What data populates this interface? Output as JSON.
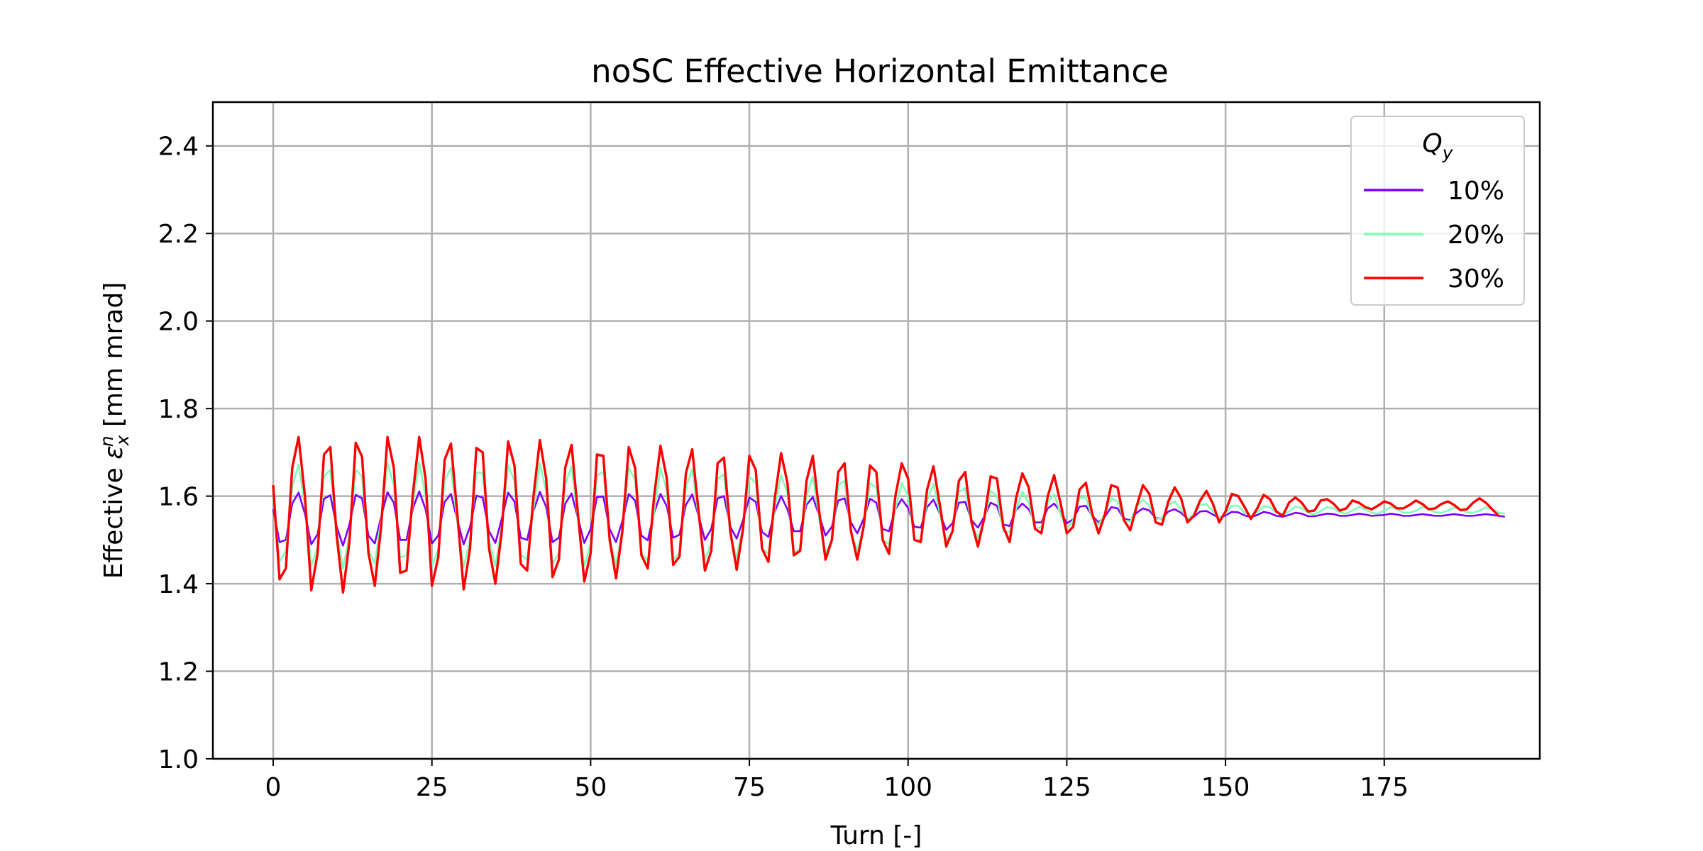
{
  "chart_data": {
    "type": "line",
    "title": "noSC Effective Horizontal Emittance",
    "xlabel": "Turn [-]",
    "ylabel_prefix": "Effective ",
    "ylabel_symbol": "ε",
    "ylabel_sub": "x",
    "ylabel_sup": "n",
    "ylabel_suffix": " [mm mrad]",
    "xlim": [
      -9.5,
      199.5
    ],
    "ylim": [
      1.0,
      2.5
    ],
    "xticks": [
      0,
      25,
      50,
      75,
      100,
      125,
      150,
      175
    ],
    "yticks": [
      1.0,
      1.2,
      1.4,
      1.6,
      1.8,
      2.0,
      2.2,
      2.4
    ],
    "grid": true,
    "legend": {
      "title_symbol": "Q",
      "title_sub": "y",
      "placement": "top-right"
    },
    "series": [
      {
        "name": "10%",
        "color": "#7f00ff",
        "x_start": 0,
        "x_step": 1,
        "values": [
          1.57,
          1.495,
          1.5,
          1.583,
          1.608,
          1.56,
          1.49,
          1.513,
          1.594,
          1.602,
          1.53,
          1.487,
          1.535,
          1.603,
          1.595,
          1.51,
          1.492,
          1.553,
          1.609,
          1.585,
          1.5,
          1.5,
          1.572,
          1.611,
          1.57,
          1.492,
          1.51,
          1.587,
          1.605,
          1.545,
          1.49,
          1.53,
          1.601,
          1.597,
          1.52,
          1.493,
          1.548,
          1.608,
          1.588,
          1.505,
          1.5,
          1.566,
          1.61,
          1.575,
          1.495,
          1.505,
          1.583,
          1.606,
          1.55,
          1.493,
          1.525,
          1.598,
          1.599,
          1.525,
          1.495,
          1.543,
          1.605,
          1.59,
          1.51,
          1.499,
          1.562,
          1.605,
          1.577,
          1.505,
          1.512,
          1.58,
          1.604,
          1.555,
          1.5,
          1.525,
          1.595,
          1.6,
          1.53,
          1.503,
          1.545,
          1.597,
          1.587,
          1.518,
          1.507,
          1.565,
          1.6,
          1.57,
          1.52,
          1.52,
          1.58,
          1.598,
          1.555,
          1.51,
          1.53,
          1.59,
          1.595,
          1.54,
          1.515,
          1.548,
          1.594,
          1.585,
          1.525,
          1.52,
          1.57,
          1.593,
          1.573,
          1.53,
          1.528,
          1.575,
          1.592,
          1.56,
          1.523,
          1.538,
          1.585,
          1.587,
          1.545,
          1.528,
          1.553,
          1.585,
          1.578,
          1.535,
          1.532,
          1.568,
          1.583,
          1.57,
          1.54,
          1.54,
          1.572,
          1.583,
          1.565,
          1.538,
          1.547,
          1.576,
          1.578,
          1.555,
          1.54,
          1.553,
          1.575,
          1.572,
          1.548,
          1.545,
          1.562,
          1.572,
          1.567,
          1.55,
          1.549,
          1.565,
          1.57,
          1.562,
          1.548,
          1.553,
          1.565,
          1.566,
          1.558,
          1.55,
          1.556,
          1.564,
          1.563,
          1.556,
          1.552,
          1.557,
          1.564,
          1.561,
          1.555,
          1.553,
          1.557,
          1.562,
          1.56,
          1.554,
          1.554,
          1.557,
          1.56,
          1.559,
          1.555,
          1.555,
          1.557,
          1.56,
          1.558,
          1.555,
          1.556,
          1.557,
          1.56,
          1.558,
          1.555,
          1.555,
          1.557,
          1.559,
          1.557,
          1.555,
          1.555,
          1.557,
          1.559,
          1.557,
          1.555,
          1.555,
          1.557,
          1.559,
          1.557,
          1.555,
          1.553
        ]
      },
      {
        "name": "20%",
        "color": "#80ffb4",
        "x_start": 0,
        "x_step": 1,
        "values": [
          1.6,
          1.45,
          1.475,
          1.622,
          1.672,
          1.58,
          1.44,
          1.485,
          1.645,
          1.66,
          1.52,
          1.435,
          1.51,
          1.66,
          1.645,
          1.48,
          1.445,
          1.548,
          1.675,
          1.625,
          1.46,
          1.465,
          1.583,
          1.678,
          1.6,
          1.44,
          1.478,
          1.635,
          1.665,
          1.54,
          1.438,
          1.5,
          1.655,
          1.652,
          1.5,
          1.44,
          1.532,
          1.67,
          1.635,
          1.465,
          1.455,
          1.57,
          1.675,
          1.61,
          1.445,
          1.47,
          1.627,
          1.668,
          1.55,
          1.44,
          1.492,
          1.648,
          1.655,
          1.505,
          1.442,
          1.525,
          1.665,
          1.638,
          1.47,
          1.452,
          1.565,
          1.665,
          1.612,
          1.455,
          1.47,
          1.62,
          1.662,
          1.553,
          1.455,
          1.492,
          1.64,
          1.65,
          1.51,
          1.46,
          1.53,
          1.645,
          1.63,
          1.48,
          1.468,
          1.572,
          1.648,
          1.607,
          1.47,
          1.48,
          1.6,
          1.645,
          1.55,
          1.47,
          1.5,
          1.625,
          1.635,
          1.52,
          1.475,
          1.53,
          1.63,
          1.62,
          1.5,
          1.49,
          1.57,
          1.63,
          1.6,
          1.5,
          1.5,
          1.59,
          1.628,
          1.56,
          1.498,
          1.52,
          1.61,
          1.618,
          1.535,
          1.505,
          1.545,
          1.612,
          1.6,
          1.52,
          1.518,
          1.57,
          1.61,
          1.585,
          1.525,
          1.53,
          1.585,
          1.605,
          1.56,
          1.525,
          1.545,
          1.595,
          1.598,
          1.55,
          1.535,
          1.56,
          1.595,
          1.588,
          1.545,
          1.542,
          1.575,
          1.592,
          1.578,
          1.548,
          1.55,
          1.58,
          1.588,
          1.57,
          1.548,
          1.557,
          1.58,
          1.582,
          1.565,
          1.55,
          1.56,
          1.578,
          1.578,
          1.562,
          1.555,
          1.563,
          1.577,
          1.575,
          1.562,
          1.557,
          1.565,
          1.576,
          1.573,
          1.562,
          1.558,
          1.566,
          1.575,
          1.572,
          1.563,
          1.56,
          1.567,
          1.575,
          1.57,
          1.562,
          1.56,
          1.567,
          1.575,
          1.57,
          1.562,
          1.562,
          1.567,
          1.575,
          1.57,
          1.563,
          1.562,
          1.567,
          1.574,
          1.57,
          1.563,
          1.562,
          1.567,
          1.574,
          1.57,
          1.562,
          1.56
        ]
      },
      {
        "name": "30%",
        "color": "#ff0000",
        "x_start": 0,
        "x_step": 1,
        "values": [
          1.625,
          1.41,
          1.435,
          1.665,
          1.735,
          1.6,
          1.385,
          1.47,
          1.695,
          1.712,
          1.51,
          1.38,
          1.495,
          1.722,
          1.69,
          1.47,
          1.395,
          1.53,
          1.735,
          1.665,
          1.425,
          1.43,
          1.605,
          1.735,
          1.64,
          1.395,
          1.46,
          1.683,
          1.72,
          1.56,
          1.387,
          1.48,
          1.71,
          1.7,
          1.48,
          1.4,
          1.52,
          1.725,
          1.67,
          1.445,
          1.43,
          1.6,
          1.728,
          1.64,
          1.415,
          1.455,
          1.665,
          1.717,
          1.56,
          1.405,
          1.47,
          1.695,
          1.692,
          1.5,
          1.412,
          1.52,
          1.712,
          1.665,
          1.465,
          1.435,
          1.6,
          1.715,
          1.64,
          1.443,
          1.462,
          1.652,
          1.707,
          1.565,
          1.43,
          1.475,
          1.675,
          1.688,
          1.52,
          1.432,
          1.525,
          1.692,
          1.66,
          1.48,
          1.45,
          1.595,
          1.698,
          1.63,
          1.465,
          1.475,
          1.635,
          1.692,
          1.565,
          1.455,
          1.5,
          1.655,
          1.675,
          1.52,
          1.455,
          1.53,
          1.67,
          1.655,
          1.5,
          1.468,
          1.6,
          1.675,
          1.64,
          1.5,
          1.495,
          1.615,
          1.668,
          1.58,
          1.485,
          1.52,
          1.635,
          1.655,
          1.54,
          1.485,
          1.55,
          1.645,
          1.64,
          1.53,
          1.495,
          1.595,
          1.652,
          1.62,
          1.525,
          1.515,
          1.6,
          1.648,
          1.585,
          1.515,
          1.53,
          1.615,
          1.63,
          1.56,
          1.515,
          1.558,
          1.625,
          1.62,
          1.545,
          1.522,
          1.577,
          1.625,
          1.605,
          1.54,
          1.535,
          1.588,
          1.62,
          1.595,
          1.54,
          1.555,
          1.59,
          1.612,
          1.583,
          1.54,
          1.565,
          1.605,
          1.6,
          1.575,
          1.548,
          1.572,
          1.603,
          1.593,
          1.565,
          1.555,
          1.585,
          1.597,
          1.585,
          1.565,
          1.567,
          1.59,
          1.593,
          1.583,
          1.567,
          1.572,
          1.59,
          1.585,
          1.575,
          1.57,
          1.578,
          1.588,
          1.583,
          1.572,
          1.572,
          1.58,
          1.59,
          1.582,
          1.57,
          1.572,
          1.582,
          1.588,
          1.58,
          1.568,
          1.57,
          1.585,
          1.595,
          1.585,
          1.57,
          1.555
        ]
      }
    ]
  }
}
